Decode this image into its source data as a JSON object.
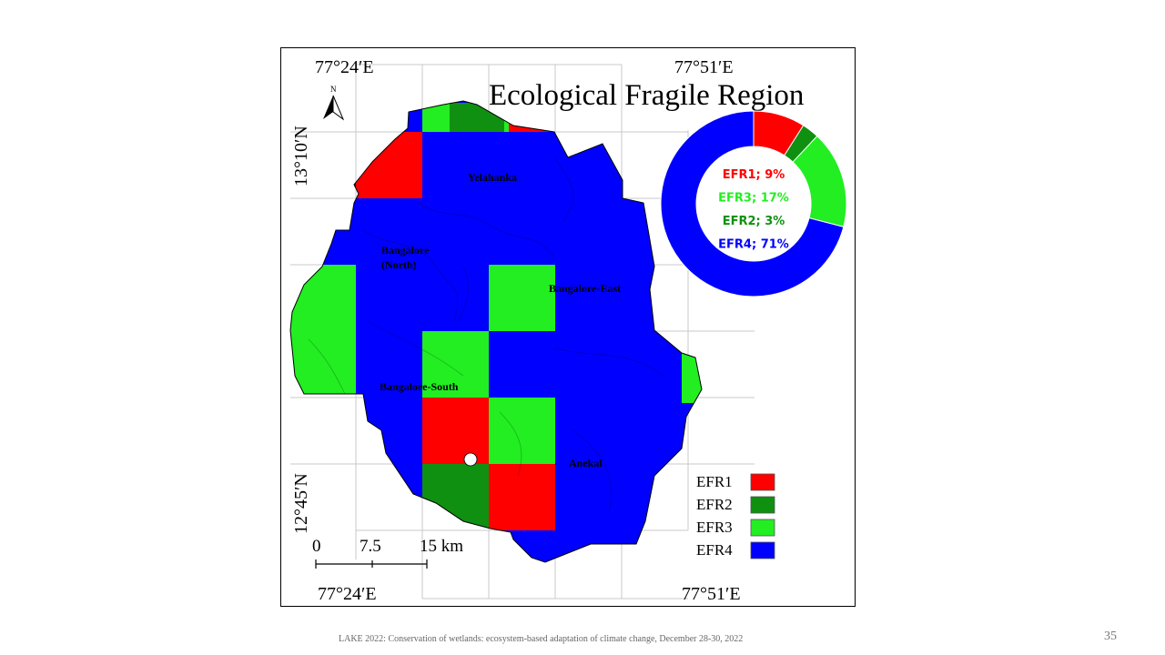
{
  "map": {
    "title": "Ecological Fragile Region",
    "north_label": "N",
    "coords": {
      "top_left": "77°24′E",
      "top_right": "77°51′E",
      "bottom_left": "77°24′E",
      "bottom_right": "77°51′E",
      "left_top": "13°10′N",
      "left_bottom": "12°45′N"
    },
    "regions": [
      "Yelahanka",
      "Bangalore",
      "(North)",
      "Bangalore-East",
      "Bangalore-South",
      "Anekal"
    ],
    "scale": {
      "labels": [
        "0",
        "7.5",
        "15 km"
      ]
    },
    "colors": {
      "EFR1": "#ff0000",
      "EFR2": "#109010",
      "EFR3": "#22ee22",
      "EFR4": "#0000ff"
    }
  },
  "pie": [
    {
      "label": "EFR1; 9%",
      "name": "EFR1",
      "value": 9,
      "color": "#ff0000"
    },
    {
      "label": "EFR2; 3%",
      "name": "EFR2",
      "value": 3,
      "color": "#109010"
    },
    {
      "label": "EFR3; 17%",
      "name": "EFR3",
      "value": 17,
      "color": "#22ee22"
    },
    {
      "label": "EFR4; 71%",
      "name": "EFR4",
      "value": 71,
      "color": "#0000ff"
    }
  ],
  "pie_label_order": [
    "EFR1; 9%",
    "EFR3; 17%",
    "EFR2; 3%",
    "EFR4; 71%"
  ],
  "legend": [
    {
      "label": "EFR1",
      "color": "#ff0000"
    },
    {
      "label": "EFR2",
      "color": "#109010"
    },
    {
      "label": "EFR3",
      "color": "#22ee22"
    },
    {
      "label": "EFR4",
      "color": "#0000ff"
    }
  ],
  "footer": "LAKE 2022: Conservation of wetlands: ecosystem-based adaptation of climate change, December 28-30, 2022",
  "slide_number": "35"
}
